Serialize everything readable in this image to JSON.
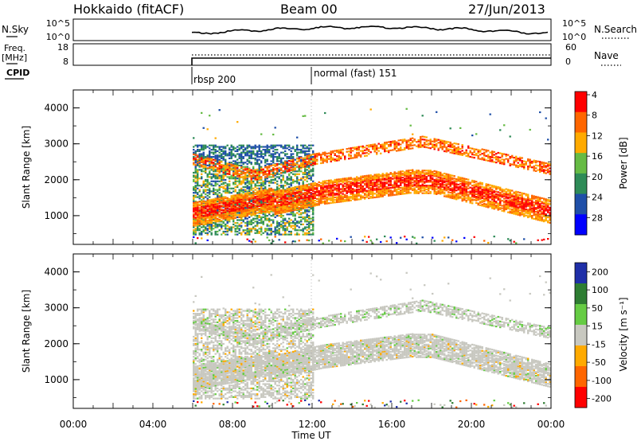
{
  "header": {
    "station": "Hokkaido (fitACF)",
    "beam": "Beam 00",
    "date": "27/Jun/2013"
  },
  "noise_panel": {
    "left_label": "N.Sky",
    "right_label": "N.Search",
    "left_ticks": [
      "10^5",
      "10^0"
    ],
    "right_ticks": [
      "10^5",
      "10^0"
    ]
  },
  "freq_panel": {
    "left_label_1": "Freq.",
    "left_label_2": "[MHz]",
    "right_label": "Nave",
    "left_ticks": [
      "18",
      "8"
    ],
    "right_ticks": [
      "60",
      "0"
    ]
  },
  "cpid": {
    "label": "CPID",
    "modes": [
      {
        "name": "rbsp 200",
        "start": 6.0
      },
      {
        "name": "normal (fast) 151",
        "start": 12.0
      }
    ]
  },
  "colors": {
    "power": [
      "#0000ff",
      "#1f4fa8",
      "#2e8b57",
      "#66bb44",
      "#ffaa00",
      "#ff6600",
      "#ff0000"
    ],
    "velocity": [
      "#1f2fa8",
      "#2e7d32",
      "#66cc44",
      "#c8c8c0",
      "#ffaa00",
      "#ff6600",
      "#ff0000"
    ]
  },
  "chart_data": [
    {
      "type": "heatmap",
      "name": "power",
      "ylabel": "Slant Range [km]",
      "xlabel": "",
      "xlim": [
        0,
        24
      ],
      "ylim": [
        200,
        4500
      ],
      "yticks": [
        "1000",
        "2000",
        "3000",
        "4000"
      ],
      "colorbar_label": "Power [dB]",
      "colorbar_ticks": [
        "4",
        "8",
        "12",
        "16",
        "20",
        "24",
        "28"
      ],
      "colorbar_range": [
        0,
        30
      ]
    },
    {
      "type": "heatmap",
      "name": "velocity",
      "ylabel": "Slant Range [km]",
      "xlabel": "Time UT",
      "xlim": [
        0,
        24
      ],
      "ylim": [
        200,
        4500
      ],
      "yticks": [
        "1000",
        "2000",
        "3000",
        "4000"
      ],
      "xticks": [
        "00:00",
        "04:00",
        "08:00",
        "12:00",
        "16:00",
        "20:00",
        "00:00"
      ],
      "colorbar_label": "Velocity [m s⁻¹]",
      "colorbar_ticks": [
        "200",
        "100",
        "50",
        "15",
        "-15",
        "-50",
        "-100",
        "-200"
      ],
      "colorbar_range": [
        -250,
        250
      ]
    }
  ]
}
